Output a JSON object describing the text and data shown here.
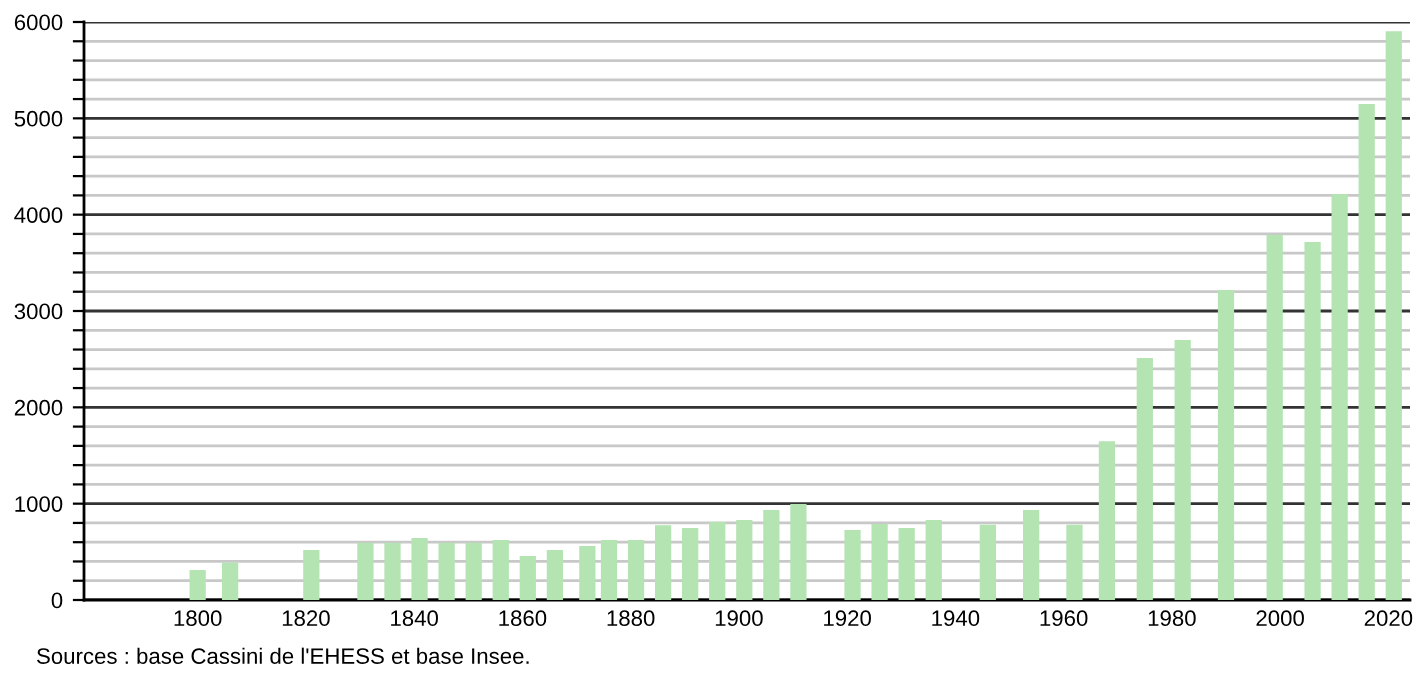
{
  "chart_data": {
    "type": "bar",
    "x": [
      1800,
      1806,
      1821,
      1831,
      1836,
      1841,
      1846,
      1851,
      1856,
      1861,
      1866,
      1872,
      1876,
      1881,
      1886,
      1891,
      1896,
      1901,
      1906,
      1911,
      1921,
      1926,
      1931,
      1936,
      1946,
      1954,
      1962,
      1968,
      1975,
      1982,
      1990,
      1999,
      2006,
      2011,
      2016,
      2021
    ],
    "values": [
      311,
      388,
      519,
      595,
      595,
      644,
      595,
      595,
      623,
      457,
      519,
      561,
      623,
      623,
      775,
      747,
      810,
      830,
      934,
      997,
      727,
      789,
      747,
      830,
      780,
      934,
      780,
      1647,
      2512,
      2699,
      3218,
      3792,
      3716,
      4214,
      5149,
      5903
    ],
    "color": "#b3e4b1",
    "xlim": [
      1779,
      2024
    ],
    "xticks": [
      1800,
      1820,
      1840,
      1860,
      1880,
      1900,
      1920,
      1940,
      1960,
      1980,
      2000,
      2020
    ],
    "ylim": [
      0,
      6000
    ],
    "yticks": [
      0,
      {
        "value": 200,
        "label": null
      },
      {
        "value": 400,
        "label": null
      },
      {
        "value": 600,
        "label": null
      },
      {
        "value": 800,
        "label": null
      },
      1000,
      {
        "value": 1200,
        "label": null
      },
      {
        "value": 1400,
        "label": null
      },
      {
        "value": 1600,
        "label": null
      },
      {
        "value": 1800,
        "label": null
      },
      2000,
      {
        "value": 2200,
        "label": null
      },
      {
        "value": 2400,
        "label": null
      },
      {
        "value": 2600,
        "label": null
      },
      {
        "value": 2800,
        "label": null
      },
      3000,
      {
        "value": 3200,
        "label": null
      },
      {
        "value": 3400,
        "label": null
      },
      {
        "value": 3600,
        "label": null
      },
      {
        "value": 3800,
        "label": null
      },
      4000,
      {
        "value": 4200,
        "label": null
      },
      {
        "value": 4400,
        "label": null
      },
      {
        "value": 4600,
        "label": null
      },
      {
        "value": 4800,
        "label": null
      },
      5000,
      {
        "value": 5200,
        "label": null
      },
      {
        "value": 5400,
        "label": null
      },
      {
        "value": 5600,
        "label": null
      },
      {
        "value": 5800,
        "label": null
      },
      6000
    ],
    "grid": "y",
    "annotations": [
      "Sources : base Cassini de l'EHESS et base Insee."
    ]
  }
}
